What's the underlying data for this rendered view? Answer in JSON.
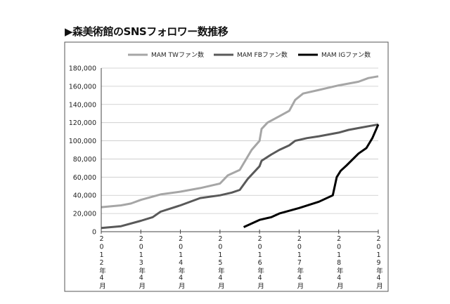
{
  "title": "▶森美術館のSNSフォロワー数推移",
  "chart_data": {
    "type": "line",
    "title": "森美術館のSNSフォロワー数推移",
    "xlabel": "",
    "ylabel": "",
    "x_unit": "years since 2012年4月",
    "xlim": [
      0,
      7
    ],
    "ylim": [
      0,
      180000
    ],
    "grid": true,
    "legend_position": "top-right",
    "x_tick_labels": [
      "2012年4月",
      "2013年4月",
      "2014年4月",
      "2015年4月",
      "2016年4月",
      "2017年4月",
      "2018年4月",
      "2019年4月"
    ],
    "y_tick_labels": [
      "0",
      "20,000",
      "40,000",
      "60,000",
      "80,000",
      "100,000",
      "120,000",
      "140,000",
      "160,000",
      "180,000"
    ],
    "y_ticks": [
      0,
      20000,
      40000,
      60000,
      80000,
      100000,
      120000,
      140000,
      160000,
      180000
    ],
    "series": [
      {
        "name": "MAM TWファン数",
        "color": "#a6a6a6",
        "x": [
          0,
          0.5,
          0.75,
          1,
          1.5,
          2,
          2.5,
          3,
          3.2,
          3.5,
          3.8,
          4,
          4.05,
          4.2,
          4.5,
          4.75,
          4.9,
          5.1,
          5.5,
          6,
          6.5,
          6.75,
          7
        ],
        "y": [
          27000,
          29000,
          31000,
          35000,
          41000,
          44000,
          48000,
          53000,
          62000,
          68000,
          90000,
          100000,
          113000,
          120000,
          127000,
          133000,
          145000,
          152000,
          156000,
          161000,
          165000,
          169000,
          171000
        ]
      },
      {
        "name": "MAM FBファン数",
        "color": "#595959",
        "x": [
          0,
          0.5,
          1,
          1.3,
          1.5,
          2,
          2.5,
          3,
          3.3,
          3.5,
          3.7,
          4,
          4.05,
          4.3,
          4.5,
          4.75,
          4.9,
          5.2,
          5.5,
          6,
          6.25,
          6.5,
          6.75,
          7
        ],
        "y": [
          4000,
          6000,
          12000,
          16000,
          22000,
          29000,
          37000,
          40000,
          43000,
          46000,
          58000,
          72000,
          78000,
          85000,
          90000,
          95000,
          100000,
          103000,
          105000,
          109000,
          112000,
          114000,
          116000,
          118000
        ]
      },
      {
        "name": "MAM IGファン数",
        "color": "#000000",
        "x": [
          3.6,
          4,
          4.3,
          4.5,
          5,
          5.5,
          5.85,
          5.95,
          6.05,
          6.2,
          6.5,
          6.7,
          6.85,
          7
        ],
        "y": [
          5000,
          13000,
          16000,
          20000,
          26000,
          33000,
          40000,
          60000,
          67000,
          73000,
          86000,
          92000,
          103000,
          118000
        ]
      }
    ]
  }
}
